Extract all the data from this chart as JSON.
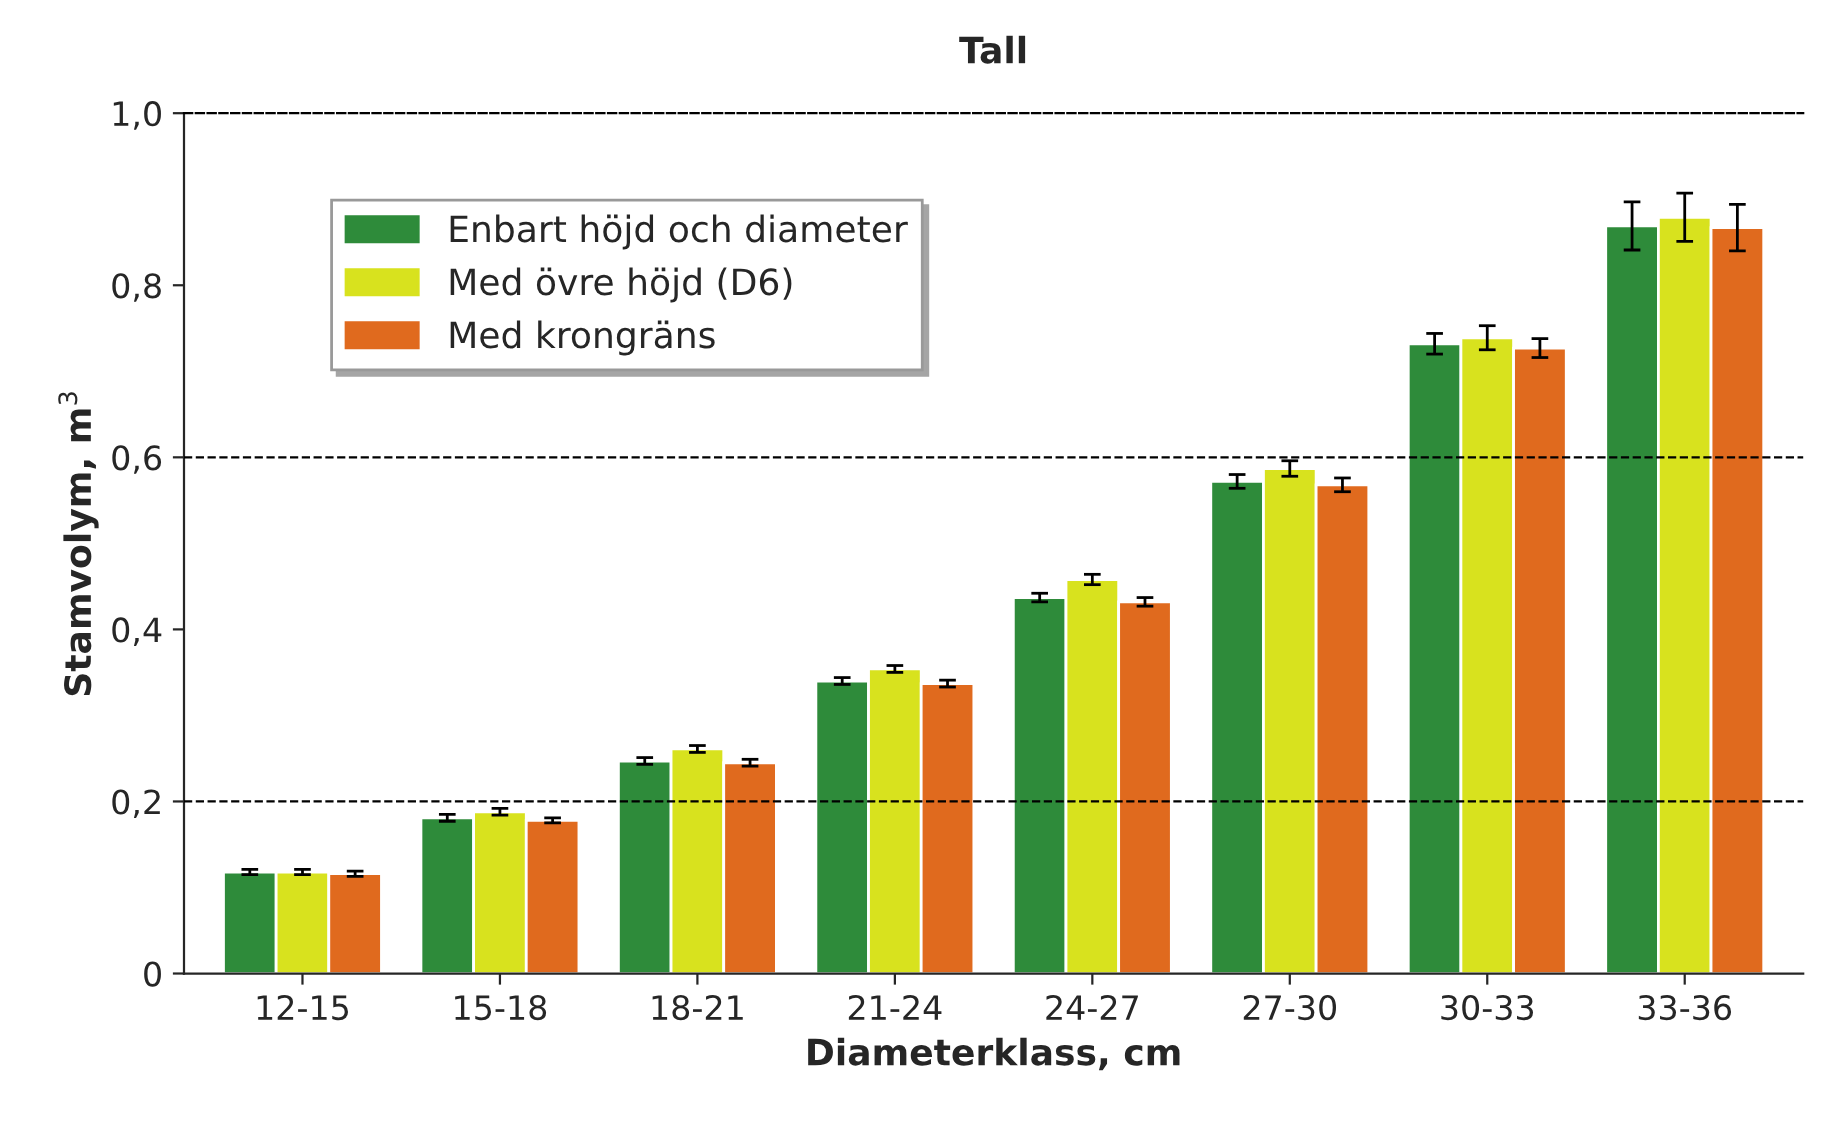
{
  "chart_data": {
    "type": "bar",
    "title": "Tall",
    "xlabel": "Diameterklass, cm",
    "ylabel": "Stamvolym, m$^{3}$",
    "categories": [
      "12-15",
      "15-18",
      "18-21",
      "21-24",
      "24-27",
      "27-30",
      "30-33",
      "33-36"
    ],
    "series": [
      {
        "name": "Enbart höjd och diameter",
        "color": "#2e8b3a",
        "values": [
          0.118,
          0.181,
          0.247,
          0.34,
          0.437,
          0.572,
          0.732,
          0.869
        ],
        "errors": [
          0.003,
          0.004,
          0.004,
          0.004,
          0.005,
          0.008,
          0.012,
          0.028
        ]
      },
      {
        "name": "Med övre höjd (D6)",
        "color": "#d8e21e",
        "values": [
          0.118,
          0.188,
          0.261,
          0.354,
          0.458,
          0.587,
          0.739,
          0.879
        ],
        "errors": [
          0.003,
          0.004,
          0.004,
          0.004,
          0.006,
          0.009,
          0.014,
          0.028
        ]
      },
      {
        "name": "Med krongräns",
        "color": "#e06a1e",
        "values": [
          0.116,
          0.178,
          0.245,
          0.337,
          0.432,
          0.568,
          0.727,
          0.867
        ],
        "errors": [
          0.003,
          0.003,
          0.004,
          0.004,
          0.005,
          0.008,
          0.011,
          0.027
        ]
      }
    ],
    "ylim": [
      0,
      1.0
    ],
    "yticks": [
      0,
      {
        "value": 0.2,
        "label": "0,2"
      },
      {
        "value": 0.4,
        "label": "0,4"
      },
      {
        "value": 0.6,
        "label": "0,6"
      },
      {
        "value": 0.8,
        "label": "0,8"
      },
      {
        "value": 1.0,
        "label": "1,0"
      }
    ],
    "ref_lines": [
      {
        "axis": "y",
        "value": 0.2,
        "color": "#000000",
        "line_style": "dashed"
      },
      {
        "axis": "y",
        "value": 0.6,
        "color": "#000000",
        "line_style": "dashed"
      }
    ],
    "legend": "top left",
    "grid": false
  }
}
